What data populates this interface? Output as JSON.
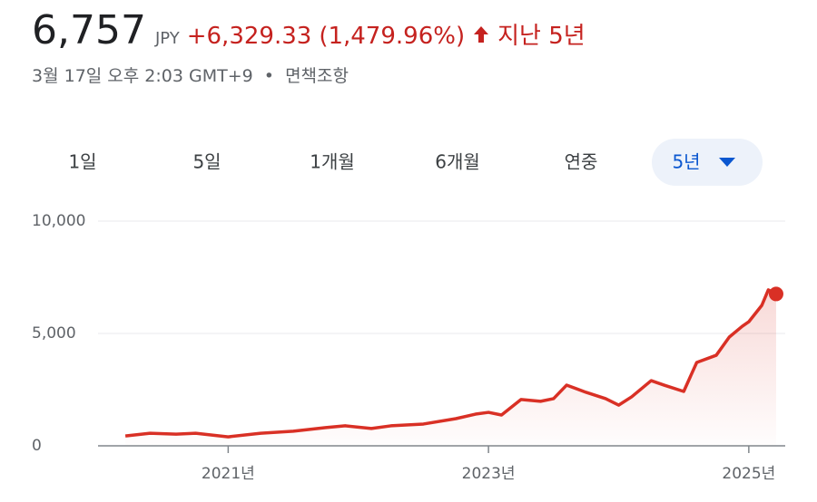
{
  "header": {
    "price": "6,757",
    "currency": "JPY",
    "change": "+6,329.33",
    "change_percent": "(1,479.96%)",
    "period": "지난 5년",
    "timestamp": "3월 17일 오후 2:03 GMT+9",
    "separator": "•",
    "disclaimer": "면책조항"
  },
  "tabs": {
    "labels": [
      "1일",
      "5일",
      "1개월",
      "6개월",
      "연중",
      "5년"
    ],
    "selected": 5
  },
  "chart_data": {
    "type": "line",
    "x": [
      2020.21,
      2020.4,
      2020.6,
      2020.75,
      2021.0,
      2021.25,
      2021.5,
      2021.75,
      2021.9,
      2022.1,
      2022.25,
      2022.5,
      2022.75,
      2022.9,
      2023.0,
      2023.1,
      2023.25,
      2023.4,
      2023.5,
      2023.6,
      2023.75,
      2023.9,
      2024.0,
      2024.1,
      2024.25,
      2024.35,
      2024.5,
      2024.6,
      2024.75,
      2024.85,
      2024.95,
      2025.0,
      2025.1,
      2025.15,
      2025.21
    ],
    "series": [
      {
        "color": "#d93025",
        "values": [
          440,
          560,
          520,
          560,
          400,
          560,
          650,
          810,
          890,
          770,
          890,
          970,
          1210,
          1410,
          1490,
          1370,
          2060,
          1980,
          2100,
          2700,
          2380,
          2100,
          1810,
          2180,
          2900,
          2700,
          2420,
          3710,
          4030,
          4840,
          5320,
          5520,
          6250,
          6940,
          6757
        ]
      }
    ],
    "xlim": [
      2020.0,
      2025.28
    ],
    "xticks": [
      {
        "value": 2021,
        "label": "2021년"
      },
      {
        "value": 2023,
        "label": "2023년"
      },
      {
        "value": 2025,
        "label": "2025년"
      }
    ],
    "ylim": [
      0,
      10000
    ],
    "yticks": [
      0,
      {
        "value": 5000,
        "label": "5,000"
      },
      {
        "value": 10000,
        "label": "10,000"
      }
    ],
    "grid": true
  }
}
